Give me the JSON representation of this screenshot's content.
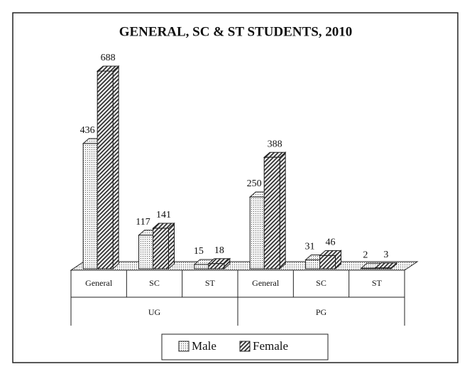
{
  "chart_data": {
    "type": "bar3d",
    "title": "GENERAL, SC & ST STUDENTS, 2010",
    "categories": [
      "General",
      "SC",
      "ST",
      "General",
      "SC",
      "ST"
    ],
    "groups": [
      "UG",
      "PG"
    ],
    "series": [
      {
        "name": "Male",
        "color": "#e6e6e6",
        "values": [
          436,
          117,
          15,
          250,
          31,
          2
        ]
      },
      {
        "name": "Female",
        "color": "#d0d0d0",
        "values": [
          688,
          141,
          18,
          388,
          46,
          3
        ]
      }
    ],
    "legend": "bottom"
  }
}
